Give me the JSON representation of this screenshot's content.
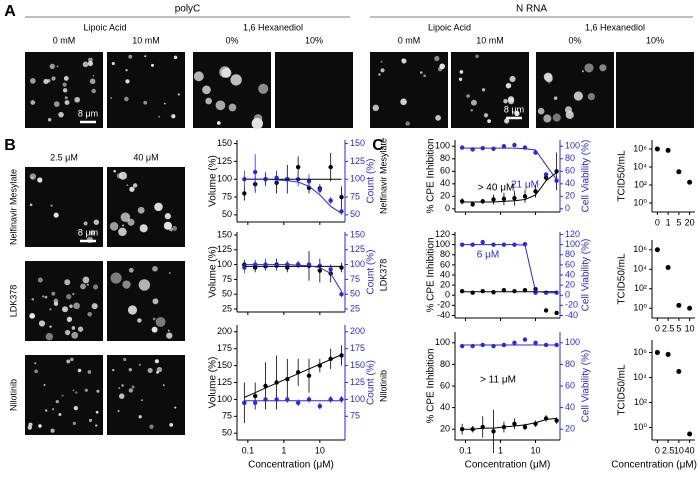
{
  "panel_a": {
    "letter": "A",
    "groups": [
      {
        "title": "polyC",
        "treatments": [
          {
            "name": "Lipoic Acid",
            "conditions": [
              "0 mM",
              "10 mM"
            ]
          },
          {
            "name": "1,6 Hexanediol",
            "conditions": [
              "0%",
              "10%"
            ]
          }
        ],
        "scale_bar": "8 μm"
      },
      {
        "title": "N RNA",
        "treatments": [
          {
            "name": "Lipoic Acid",
            "conditions": [
              "0 mM",
              "10 mM"
            ]
          },
          {
            "name": "1,6 Hexanediol",
            "conditions": [
              "0%",
              "10%"
            ]
          }
        ],
        "scale_bar": "8 μm"
      }
    ]
  },
  "panel_b": {
    "letter": "B",
    "conditions": [
      "2.5 μM",
      "40 μM"
    ],
    "drugs": [
      "Nelfinavir Mesylate",
      "LDK378",
      "Nilotinib"
    ],
    "scale_bar": "8 μm"
  },
  "panel_c": {
    "letter": "C",
    "drugs": [
      "Nelfinavir Mesylate",
      "LDK378",
      "Nilotinib"
    ]
  },
  "chart_data": [
    {
      "type": "scatter",
      "x_log": true,
      "y_label": "Volume (%)",
      "y2_label": "Count (%)",
      "y2_color": "#2a2ad8",
      "x": [
        0.08,
        0.16,
        0.31,
        0.63,
        1.25,
        2.5,
        5,
        10,
        20,
        40
      ],
      "xlim": [
        0.05,
        50
      ],
      "xticks": [
        0.1,
        1,
        10
      ],
      "ylim": [
        40,
        155
      ],
      "yticks": [
        50,
        75,
        100,
        125,
        150
      ],
      "y2lim": [
        40,
        155
      ],
      "y2ticks": [
        50,
        75,
        100,
        125,
        150
      ],
      "series": [
        {
          "color": "#000000",
          "mode": "markers",
          "values": [
            80,
            93,
            100,
            95,
            100,
            117,
            88,
            87,
            117,
            75
          ],
          "errors": [
            10,
            12,
            8,
            15,
            20,
            15,
            8,
            6,
            20,
            15
          ]
        },
        {
          "color": "#2a2ad8",
          "mode": "markers",
          "axis": "y2",
          "values": [
            100,
            110,
            100,
            102,
            100,
            100,
            97,
            85,
            70,
            55
          ],
          "errors": [
            12,
            25,
            10,
            10,
            15,
            10,
            10,
            5,
            5,
            5
          ]
        },
        {
          "color": "#000000",
          "mode": "line",
          "values": [
            100,
            100,
            100,
            100,
            100,
            100,
            100,
            100,
            100,
            100
          ]
        },
        {
          "color": "#2a2ad8",
          "mode": "line",
          "axis": "y2",
          "values": [
            100,
            100,
            100,
            99,
            98,
            96,
            90,
            78,
            62,
            52
          ]
        }
      ]
    },
    {
      "type": "scatter",
      "x_log": true,
      "y_label": "Volume (%)",
      "y2_label": "Count (%)",
      "y2_color": "#2a2ad8",
      "x": [
        0.08,
        0.16,
        0.31,
        0.63,
        1.25,
        2.5,
        5,
        10,
        20,
        40
      ],
      "xlim": [
        0.05,
        50
      ],
      "xticks": [
        0.1,
        1,
        10
      ],
      "ylim": [
        20,
        155
      ],
      "yticks": [
        25,
        50,
        75,
        100,
        125,
        150
      ],
      "y2lim": [
        20,
        155
      ],
      "y2ticks": [
        25,
        50,
        75,
        100,
        125,
        150
      ],
      "series": [
        {
          "color": "#000000",
          "mode": "markers",
          "values": [
            100,
            95,
            97,
            100,
            95,
            100,
            98,
            90,
            85,
            95
          ],
          "errors": [
            8,
            8,
            6,
            10,
            8,
            6,
            25,
            20,
            15,
            8
          ]
        },
        {
          "color": "#2a2ad8",
          "mode": "markers",
          "axis": "y2",
          "values": [
            95,
            100,
            100,
            98,
            100,
            100,
            100,
            98,
            92,
            50
          ],
          "errors": [
            10,
            8,
            10,
            8,
            6,
            5,
            5,
            6,
            8,
            5
          ]
        },
        {
          "color": "#000000",
          "mode": "line",
          "values": [
            97,
            97,
            97,
            97,
            97,
            97,
            97,
            97,
            97,
            97
          ]
        },
        {
          "color": "#2a2ad8",
          "mode": "line",
          "axis": "y2",
          "values": [
            100,
            100,
            100,
            100,
            100,
            99,
            98,
            95,
            85,
            55
          ]
        }
      ]
    },
    {
      "type": "scatter",
      "x_log": true,
      "y_label": "Volume (%)",
      "y2_label": "Count (%)",
      "y2_color": "#2a2ad8",
      "x_label": "Concentration (μM)",
      "x": [
        0.08,
        0.16,
        0.31,
        0.63,
        1.25,
        2.5,
        5,
        10,
        20,
        40
      ],
      "xlim": [
        0.05,
        50
      ],
      "xticks": [
        0.1,
        1,
        10
      ],
      "ylim": [
        40,
        210
      ],
      "yticks": [
        50,
        75,
        100,
        125,
        150,
        175,
        200
      ],
      "y2lim": [
        40,
        210
      ],
      "y2ticks": [
        75,
        100,
        125,
        150,
        175,
        200
      ],
      "series": [
        {
          "color": "#000000",
          "mode": "markers",
          "values": [
            95,
            105,
            120,
            125,
            130,
            140,
            135,
            150,
            160,
            165
          ],
          "errors": [
            30,
            20,
            35,
            40,
            30,
            20,
            25,
            10,
            15,
            15
          ]
        },
        {
          "color": "#2a2ad8",
          "mode": "markers",
          "axis": "y2",
          "values": [
            95,
            95,
            100,
            100,
            100,
            95,
            100,
            90,
            100,
            100
          ],
          "errors": [
            5,
            5,
            5,
            5,
            5,
            5,
            5,
            5,
            5,
            5
          ]
        },
        {
          "color": "#000000",
          "mode": "line",
          "values": [
            103,
            110,
            117,
            124,
            131,
            138,
            145,
            152,
            159,
            166
          ]
        },
        {
          "color": "#2a2ad8",
          "mode": "line",
          "axis": "y2",
          "values": [
            98,
            98,
            98,
            98,
            98,
            98,
            98,
            98,
            98,
            98
          ]
        }
      ]
    },
    {
      "type": "scatter",
      "x_log": true,
      "y_label": "% CPE Inhibition",
      "y2_label": "Cell Viability (%)",
      "y2_color": "#2a2ad8",
      "annotations": [
        {
          "text": "21 μM",
          "color": "#2a2ad8"
        },
        {
          "text": "> 40 μM",
          "color": "#000000"
        }
      ],
      "x": [
        0.08,
        0.16,
        0.31,
        0.63,
        1.25,
        2.5,
        5,
        10,
        20,
        40
      ],
      "xlim": [
        0.05,
        50
      ],
      "xticks": [
        0.1,
        1,
        10
      ],
      "ylim": [
        -5,
        110
      ],
      "yticks": [
        0,
        20,
        40,
        60,
        80,
        100
      ],
      "y2lim": [
        -5,
        110
      ],
      "y2ticks": [
        0,
        20,
        40,
        60,
        80,
        100
      ],
      "series": [
        {
          "color": "#000000",
          "mode": "markers",
          "values": [
            12,
            7,
            12,
            15,
            16,
            17,
            20,
            28,
            50,
            60
          ],
          "errors": [
            5,
            3,
            4,
            8,
            10,
            12,
            10,
            10,
            5,
            30
          ]
        },
        {
          "color": "#2a2ad8",
          "mode": "markers",
          "axis": "y2",
          "values": [
            98,
            95,
            97,
            96,
            100,
            102,
            98,
            90,
            55,
            45
          ]
        },
        {
          "color": "#000000",
          "mode": "line",
          "values": [
            11,
            11,
            11,
            11,
            12,
            13,
            15,
            22,
            45,
            58
          ]
        },
        {
          "color": "#2a2ad8",
          "mode": "line",
          "axis": "y2",
          "values": [
            97,
            97,
            97,
            97,
            97,
            97,
            96,
            94,
            70,
            47
          ]
        }
      ]
    },
    {
      "type": "scatter",
      "x_log": true,
      "y_label": "% CPE Inhibition",
      "y2_label": "Cell Viability (%)",
      "y2_color": "#2a2ad8",
      "annotations": [
        {
          "text": "6 μM",
          "color": "#2a2ad8"
        }
      ],
      "x": [
        0.08,
        0.16,
        0.31,
        0.63,
        1.25,
        2.5,
        5,
        10,
        20,
        40
      ],
      "xlim": [
        0.05,
        50
      ],
      "xticks": [
        0.1,
        1,
        10
      ],
      "ylim": [
        -45,
        125
      ],
      "yticks": [
        -40,
        -20,
        0,
        20,
        40,
        60,
        80,
        100,
        120
      ],
      "y2lim": [
        -45,
        125
      ],
      "y2ticks": [
        -40,
        -20,
        0,
        20,
        40,
        60,
        80,
        100,
        120
      ],
      "series": [
        {
          "color": "#000000",
          "mode": "markers",
          "values": [
            8,
            5,
            8,
            6,
            10,
            8,
            10,
            12,
            -30,
            -35
          ]
        },
        {
          "color": "#2a2ad8",
          "mode": "markers",
          "axis": "y2",
          "values": [
            100,
            100,
            105,
            100,
            100,
            100,
            101,
            5,
            5,
            5
          ]
        },
        {
          "color": "#000000",
          "mode": "line",
          "values": [
            7,
            7,
            7,
            7,
            7,
            7,
            7,
            7,
            7,
            7
          ]
        },
        {
          "color": "#2a2ad8",
          "mode": "line",
          "axis": "y2",
          "values": [
            100,
            100,
            100,
            100,
            100,
            100,
            99,
            8,
            5,
            5
          ]
        }
      ]
    },
    {
      "type": "scatter",
      "x_log": true,
      "y_label": "% CPE Inhibition",
      "y2_label": "Cell Viability (%)",
      "y2_color": "#2a2ad8",
      "x_label": "Concentration (μM)",
      "annotations": [
        {
          "text": "> 11 μM",
          "color": "#000000"
        }
      ],
      "x": [
        0.08,
        0.16,
        0.31,
        0.63,
        1.25,
        2.5,
        5,
        10,
        20,
        40
      ],
      "xlim": [
        0.05,
        50
      ],
      "xticks": [
        0.1,
        1,
        10
      ],
      "ylim": [
        10,
        110
      ],
      "yticks": [
        20,
        40,
        60,
        80,
        100
      ],
      "y2lim": [
        10,
        110
      ],
      "y2ticks": [
        20,
        40,
        60,
        80,
        100
      ],
      "series": [
        {
          "color": "#000000",
          "mode": "markers",
          "values": [
            20,
            20,
            22,
            18,
            22,
            25,
            22,
            25,
            30,
            28
          ],
          "errors": [
            5,
            3,
            10,
            20,
            5,
            5,
            3,
            3,
            3,
            3
          ]
        },
        {
          "color": "#2a2ad8",
          "mode": "markers",
          "axis": "y2",
          "values": [
            97,
            97,
            98,
            97,
            98,
            100,
            103,
            100,
            98,
            98
          ]
        },
        {
          "color": "#000000",
          "mode": "line",
          "values": [
            20,
            20,
            21,
            21,
            22,
            23,
            24,
            26,
            29,
            30
          ]
        },
        {
          "color": "#2a2ad8",
          "mode": "line",
          "axis": "y2",
          "values": [
            98,
            98,
            98,
            98,
            98,
            98,
            98,
            98,
            98,
            98
          ]
        }
      ]
    },
    {
      "type": "strip",
      "log_scale": true,
      "y_label": "TCID50/mL",
      "color": "#000000",
      "categories": [
        "0",
        "1",
        "5",
        "20"
      ],
      "values": [
        1000000,
        700000,
        3000,
        200
      ],
      "ylim": [
        0.1,
        10000000
      ],
      "yticks": [
        {
          "value": 1,
          "label": "10⁰"
        },
        {
          "value": 100,
          "label": "10²"
        },
        {
          "value": 10000,
          "label": "10⁴"
        },
        {
          "value": 1000000,
          "label": "10⁶"
        }
      ]
    },
    {
      "type": "strip",
      "log_scale": true,
      "y_label": "TCID50/mL",
      "color": "#000000",
      "categories": [
        "0",
        "2.5",
        "5",
        "10"
      ],
      "values": [
        1000000,
        15000,
        2,
        1
      ],
      "ylim": [
        0.1,
        10000000
      ],
      "yticks": [
        {
          "value": 1,
          "label": "10⁰"
        },
        {
          "value": 100,
          "label": "10²"
        },
        {
          "value": 10000,
          "label": "10⁴"
        },
        {
          "value": 1000000,
          "label": "10⁶"
        }
      ]
    },
    {
      "type": "strip",
      "log_scale": true,
      "y_label": "TCID50/mL",
      "color": "#000000",
      "x_label": "Concentration (μM)",
      "categories": [
        "0",
        "2.5",
        "10",
        "40"
      ],
      "values": [
        1000000,
        700000,
        30000,
        0.3
      ],
      "ylim": [
        0.1,
        10000000
      ],
      "yticks": [
        {
          "value": 1,
          "label": "10⁰"
        },
        {
          "value": 100,
          "label": "10²"
        },
        {
          "value": 10000,
          "label": "10⁴"
        },
        {
          "value": 1000000,
          "label": "10⁶"
        }
      ]
    }
  ]
}
